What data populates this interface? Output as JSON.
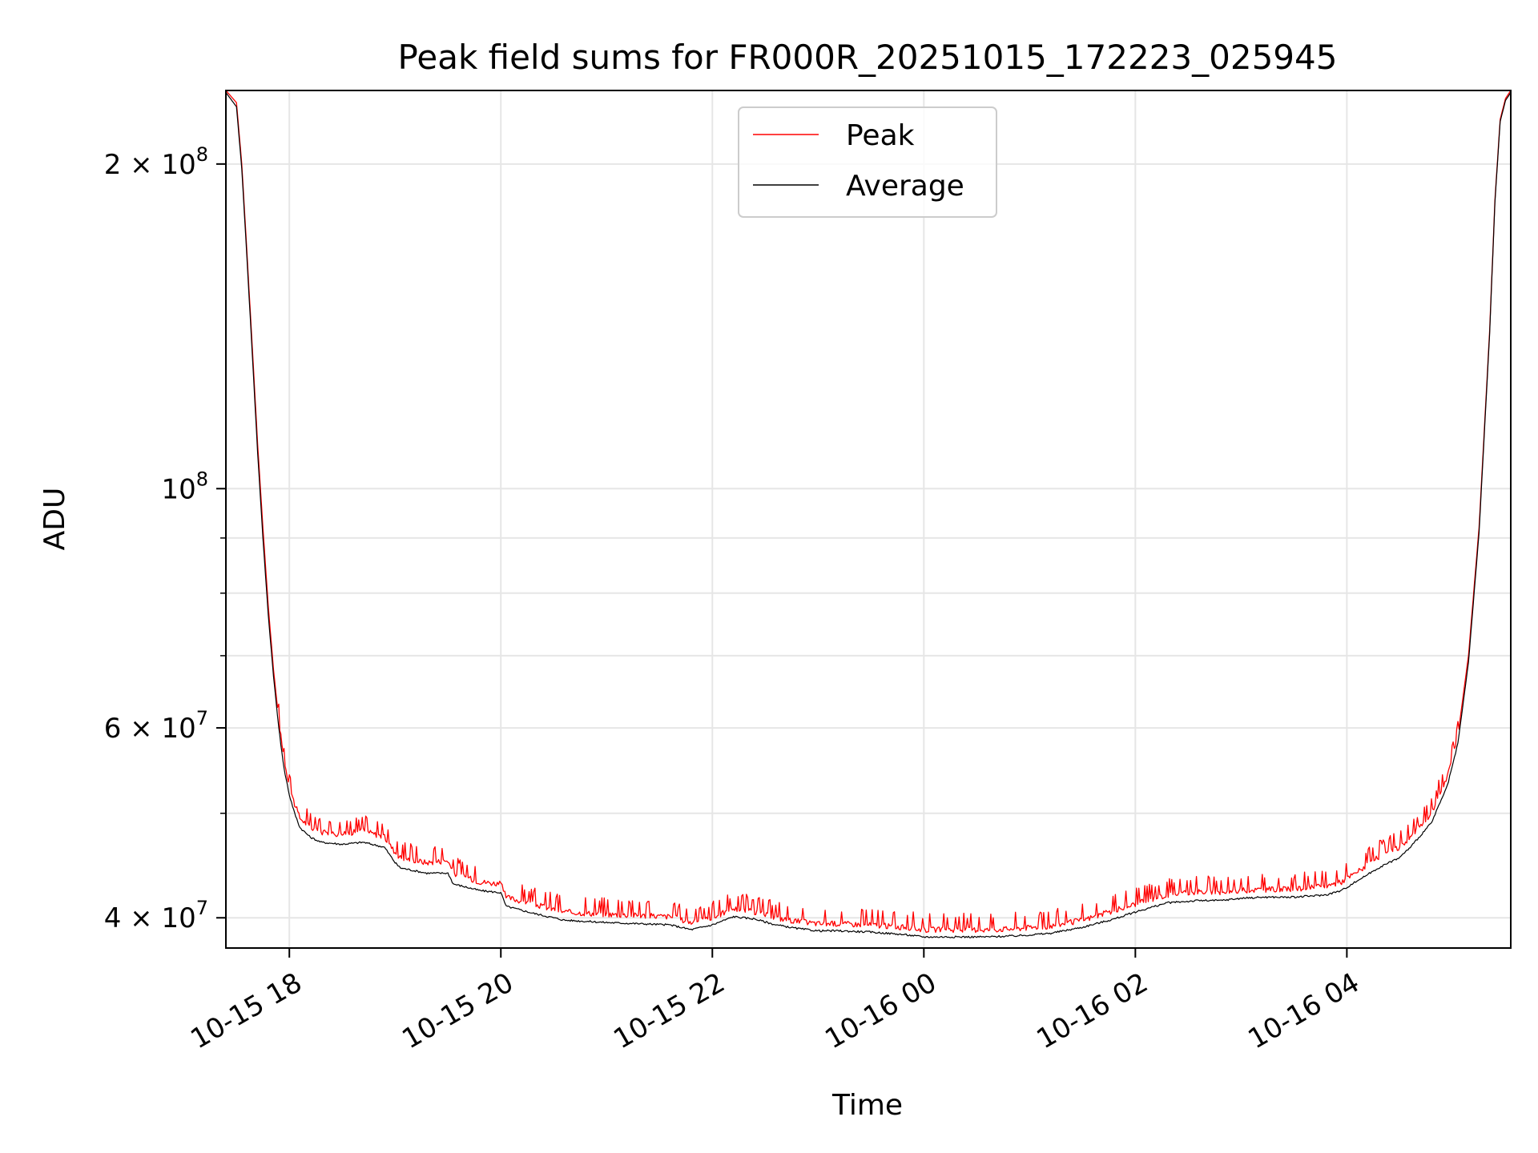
{
  "chart_data": {
    "type": "line",
    "title": "Peak field sums for FR000R_20251015_172223_025945",
    "xlabel": "Time",
    "ylabel": "ADU",
    "yscale": "log",
    "grid": true,
    "legend_position": "upper-center",
    "xlim_hours": [
      -0.6,
      11.55
    ],
    "ylim": [
      37500000,
      234000000
    ],
    "x_unit": "hours since 2025-10-15 18:00",
    "x_ticks": [
      {
        "value": 0,
        "label": "10-15 18"
      },
      {
        "value": 2,
        "label": "10-15 20"
      },
      {
        "value": 4,
        "label": "10-15 22"
      },
      {
        "value": 6,
        "label": "10-16 00"
      },
      {
        "value": 8,
        "label": "10-16 02"
      },
      {
        "value": 10,
        "label": "10-16 04"
      }
    ],
    "y_major_ticks": [
      {
        "value": 40000000,
        "base": "4 × 10",
        "exp": "7"
      },
      {
        "value": 60000000,
        "base": "6 × 10",
        "exp": "7"
      },
      {
        "value": 100000000,
        "base": "10",
        "exp": "8"
      },
      {
        "value": 200000000,
        "base": "2 × 10",
        "exp": "8"
      }
    ],
    "y_minor_grid": [
      50000000,
      70000000,
      80000000,
      90000000
    ],
    "series": [
      {
        "name": "Peak",
        "color": "#ff0000",
        "x": [
          -0.6,
          -0.5,
          -0.45,
          -0.4,
          -0.35,
          -0.3,
          -0.25,
          -0.2,
          -0.15,
          -0.1,
          -0.05,
          0.0,
          0.05,
          0.1,
          0.2,
          0.3,
          0.5,
          0.7,
          0.9,
          1.0,
          1.05,
          1.3,
          1.5,
          1.55,
          1.8,
          2.0,
          2.05,
          2.3,
          2.6,
          3.0,
          3.3,
          3.6,
          3.8,
          4.0,
          4.2,
          4.4,
          4.6,
          4.8,
          5.0,
          5.2,
          5.5,
          5.8,
          6.0,
          6.3,
          6.6,
          6.9,
          7.2,
          7.5,
          7.8,
          8.0,
          8.3,
          8.6,
          8.8,
          9.0,
          9.2,
          9.5,
          9.8,
          9.95,
          10.05,
          10.3,
          10.5,
          10.6,
          10.8,
          10.95,
          11.05,
          11.15,
          11.25,
          11.35,
          11.4,
          11.45,
          11.5,
          11.55
        ],
        "y": [
          234000000,
          228000000,
          200000000,
          165000000,
          135000000,
          110000000,
          92000000,
          78000000,
          68000000,
          61000000,
          56000000,
          53000000,
          51000000,
          49500000,
          48500000,
          48000000,
          47800000,
          48200000,
          47500000,
          46000000,
          45500000,
          45000000,
          45200000,
          44000000,
          43200000,
          43000000,
          41800000,
          41200000,
          40500000,
          40300000,
          40200000,
          40100000,
          39600000,
          40000000,
          40800000,
          40500000,
          40000000,
          39700000,
          39500000,
          39500000,
          39400000,
          39200000,
          39000000,
          39000000,
          39000000,
          39100000,
          39300000,
          39800000,
          40600000,
          41200000,
          42000000,
          42300000,
          42200000,
          42400000,
          42500000,
          42500000,
          42800000,
          43200000,
          43800000,
          45500000,
          46500000,
          47500000,
          50000000,
          54000000,
          59000000,
          70000000,
          92000000,
          140000000,
          185000000,
          220000000,
          230000000,
          234000000
        ]
      },
      {
        "name": "Average",
        "color": "#000000",
        "x": [
          -0.6,
          -0.5,
          -0.45,
          -0.4,
          -0.35,
          -0.3,
          -0.25,
          -0.2,
          -0.15,
          -0.1,
          -0.05,
          0.0,
          0.05,
          0.1,
          0.2,
          0.3,
          0.5,
          0.7,
          0.9,
          1.0,
          1.05,
          1.3,
          1.5,
          1.55,
          1.8,
          2.0,
          2.05,
          2.3,
          2.6,
          3.0,
          3.3,
          3.6,
          3.8,
          4.0,
          4.2,
          4.4,
          4.6,
          4.8,
          5.0,
          5.2,
          5.5,
          5.8,
          6.0,
          6.3,
          6.6,
          6.9,
          7.2,
          7.5,
          7.8,
          8.0,
          8.3,
          8.6,
          8.8,
          9.0,
          9.2,
          9.5,
          9.8,
          9.95,
          10.05,
          10.3,
          10.5,
          10.6,
          10.8,
          10.95,
          11.05,
          11.15,
          11.25,
          11.35,
          11.4,
          11.45,
          11.5,
          11.55
        ],
        "y": [
          233000000,
          226000000,
          198000000,
          163000000,
          133000000,
          108000000,
          90000000,
          76500000,
          67000000,
          60000000,
          55000000,
          52000000,
          50000000,
          48500000,
          47500000,
          47000000,
          46800000,
          47000000,
          46500000,
          45000000,
          44500000,
          44000000,
          44000000,
          43000000,
          42400000,
          42200000,
          41000000,
          40400000,
          39800000,
          39600000,
          39500000,
          39400000,
          39000000,
          39400000,
          40100000,
          39900000,
          39400000,
          39100000,
          38900000,
          38900000,
          38800000,
          38600000,
          38400000,
          38400000,
          38400000,
          38500000,
          38700000,
          39200000,
          39900000,
          40500000,
          41300000,
          41500000,
          41500000,
          41700000,
          41800000,
          41800000,
          42000000,
          42400000,
          43000000,
          44500000,
          45500000,
          46500000,
          49000000,
          53000000,
          58000000,
          69000000,
          91000000,
          139000000,
          184000000,
          219000000,
          229000000,
          233000000
        ]
      }
    ]
  }
}
